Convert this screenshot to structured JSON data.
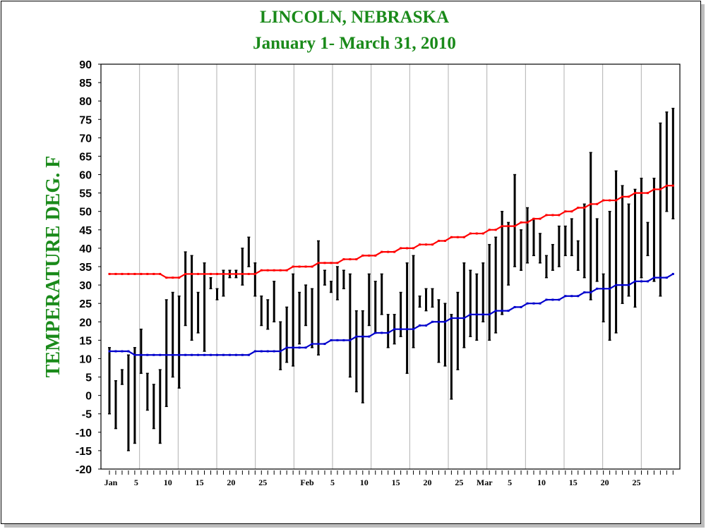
{
  "colors": {
    "title": "#1a8a1a",
    "normal_high": "#ff0000",
    "normal_low": "#0000cc",
    "bars": "#000000",
    "grid": "#b0b0b0"
  },
  "chart_data": {
    "type": "bar",
    "subtype": "daily temperature range bars with normal high/low lines",
    "title": "LINCOLN, NEBRASKA",
    "subtitle": "January 1- March 31, 2010",
    "ylabel": "TEMPERATURE DEG. F",
    "xlabel": "",
    "ylim": [
      -20,
      90
    ],
    "yticks": [
      -20,
      -15,
      -10,
      -5,
      0,
      5,
      10,
      15,
      20,
      25,
      30,
      35,
      40,
      45,
      50,
      55,
      60,
      65,
      70,
      75,
      80,
      85,
      90
    ],
    "grid": "vertical",
    "days": 90,
    "x_tick_labels": [
      {
        "day": 1,
        "label": "Jan"
      },
      {
        "day": 5,
        "label": "5"
      },
      {
        "day": 10,
        "label": "10"
      },
      {
        "day": 15,
        "label": "15"
      },
      {
        "day": 20,
        "label": "20"
      },
      {
        "day": 25,
        "label": "25"
      },
      {
        "day": 32,
        "label": "Feb"
      },
      {
        "day": 36,
        "label": "5"
      },
      {
        "day": 41,
        "label": "10"
      },
      {
        "day": 46,
        "label": "15"
      },
      {
        "day": 51,
        "label": "20"
      },
      {
        "day": 56,
        "label": "25"
      },
      {
        "day": 60,
        "label": "Mar"
      },
      {
        "day": 64,
        "label": "5"
      },
      {
        "day": 69,
        "label": "10"
      },
      {
        "day": 74,
        "label": "15"
      },
      {
        "day": 79,
        "label": "20"
      },
      {
        "day": 84,
        "label": "25"
      }
    ],
    "daily_high": [
      13,
      4,
      7,
      11,
      13,
      18,
      6,
      3,
      7,
      26,
      28,
      27,
      39,
      38,
      28,
      36,
      32,
      29,
      34,
      34,
      34,
      40,
      43,
      36,
      27,
      26,
      31,
      20,
      24,
      33,
      28,
      30,
      29,
      42,
      34,
      31,
      35,
      34,
      33,
      23,
      23,
      33,
      31,
      33,
      22,
      22,
      28,
      36,
      38,
      27,
      29,
      29,
      26,
      25,
      22,
      28,
      36,
      34,
      33,
      36,
      41,
      43,
      50,
      47,
      60,
      45,
      51,
      48,
      44,
      38,
      41,
      46,
      46,
      48,
      42,
      52,
      66,
      48,
      33,
      50,
      61,
      57,
      52,
      56,
      59,
      47,
      59,
      74,
      77,
      78
    ],
    "daily_low": [
      -5,
      -9,
      3,
      -15,
      -13,
      6,
      -4,
      -9,
      -13,
      -3,
      5,
      2,
      19,
      15,
      17,
      12,
      29,
      26,
      27,
      32,
      32,
      30,
      35,
      27,
      19,
      18,
      20,
      7,
      9,
      8,
      14,
      19,
      13,
      11,
      30,
      28,
      26,
      29,
      5,
      1,
      -2,
      19,
      17,
      22,
      13,
      14,
      16,
      6,
      13,
      24,
      23,
      24,
      9,
      8,
      -1,
      7,
      13,
      16,
      15,
      20,
      15,
      17,
      22,
      30,
      35,
      34,
      36,
      38,
      36,
      32,
      34,
      35,
      38,
      38,
      34,
      32,
      26,
      31,
      20,
      15,
      17,
      25,
      27,
      24,
      32,
      38,
      31,
      27,
      50,
      48
    ],
    "series": [
      {
        "name": "",
        "values": [
          33,
          33,
          33,
          33,
          33,
          33,
          33,
          33,
          33,
          32,
          32,
          32,
          33,
          33,
          33,
          33,
          33,
          33,
          33,
          33,
          33,
          33,
          33,
          33,
          34,
          34,
          34,
          34,
          34,
          35,
          35,
          35,
          35,
          36,
          36,
          36,
          36,
          37,
          37,
          37,
          38,
          38,
          38,
          39,
          39,
          39,
          40,
          40,
          40,
          41,
          41,
          41,
          42,
          42,
          43,
          43,
          43,
          44,
          44,
          44,
          45,
          45,
          46,
          46,
          46,
          47,
          47,
          48,
          48,
          49,
          49,
          49,
          50,
          50,
          51,
          51,
          52,
          52,
          53,
          53,
          53,
          54,
          54,
          55,
          55,
          55,
          56,
          56,
          57,
          57
        ]
      },
      {
        "name": "",
        "values": [
          12,
          12,
          12,
          12,
          11,
          11,
          11,
          11,
          11,
          11,
          11,
          11,
          11,
          11,
          11,
          11,
          11,
          11,
          11,
          11,
          11,
          11,
          11,
          12,
          12,
          12,
          12,
          12,
          13,
          13,
          13,
          13,
          14,
          14,
          14,
          15,
          15,
          15,
          15,
          16,
          16,
          16,
          17,
          17,
          17,
          18,
          18,
          18,
          18,
          19,
          19,
          20,
          20,
          20,
          21,
          21,
          21,
          22,
          22,
          22,
          22,
          23,
          23,
          23,
          24,
          24,
          25,
          25,
          25,
          26,
          26,
          26,
          27,
          27,
          27,
          28,
          28,
          29,
          29,
          29,
          30,
          30,
          30,
          31,
          31,
          31,
          32,
          32,
          32,
          33
        ]
      }
    ]
  }
}
